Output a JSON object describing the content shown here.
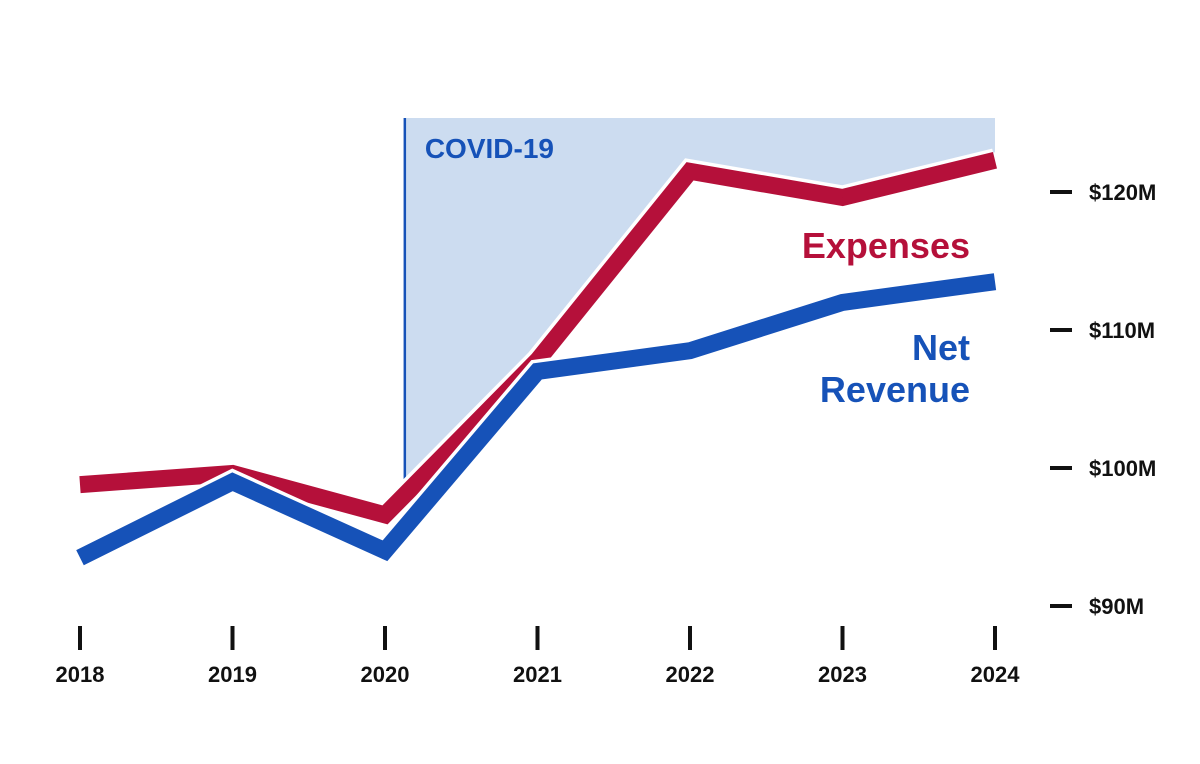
{
  "chart_data": {
    "type": "line",
    "x": [
      "2018",
      "2019",
      "2020",
      "2021",
      "2022",
      "2023",
      "2024"
    ],
    "series": [
      {
        "name": "Expenses",
        "label_lines": [
          "Expenses"
        ],
        "color": "#b5103a",
        "values": [
          98.8,
          99.6,
          96.6,
          107.8,
          121.5,
          119.6,
          122.3
        ]
      },
      {
        "name": "Net Revenue",
        "label_lines": [
          "Net",
          "Revenue"
        ],
        "color": "#1652b8",
        "values": [
          93.5,
          99.0,
          94.0,
          107.0,
          108.5,
          112.0,
          113.5
        ]
      }
    ],
    "y_axis": {
      "position": "right",
      "ticks": [
        90,
        100,
        110,
        120
      ],
      "tick_labels": [
        "$90M",
        "$100M",
        "$110M",
        "$120M"
      ],
      "ylim": [
        88,
        128
      ]
    },
    "annotation": {
      "label": "COVID-19",
      "start_x": "2020",
      "end_x": "2024",
      "start_offset": 0.13,
      "fill_color": "#ccdcf0",
      "line_color": "#1652b8",
      "text_color": "#1652b8"
    },
    "grid": false,
    "legend": "inline labels at right end of lines"
  }
}
